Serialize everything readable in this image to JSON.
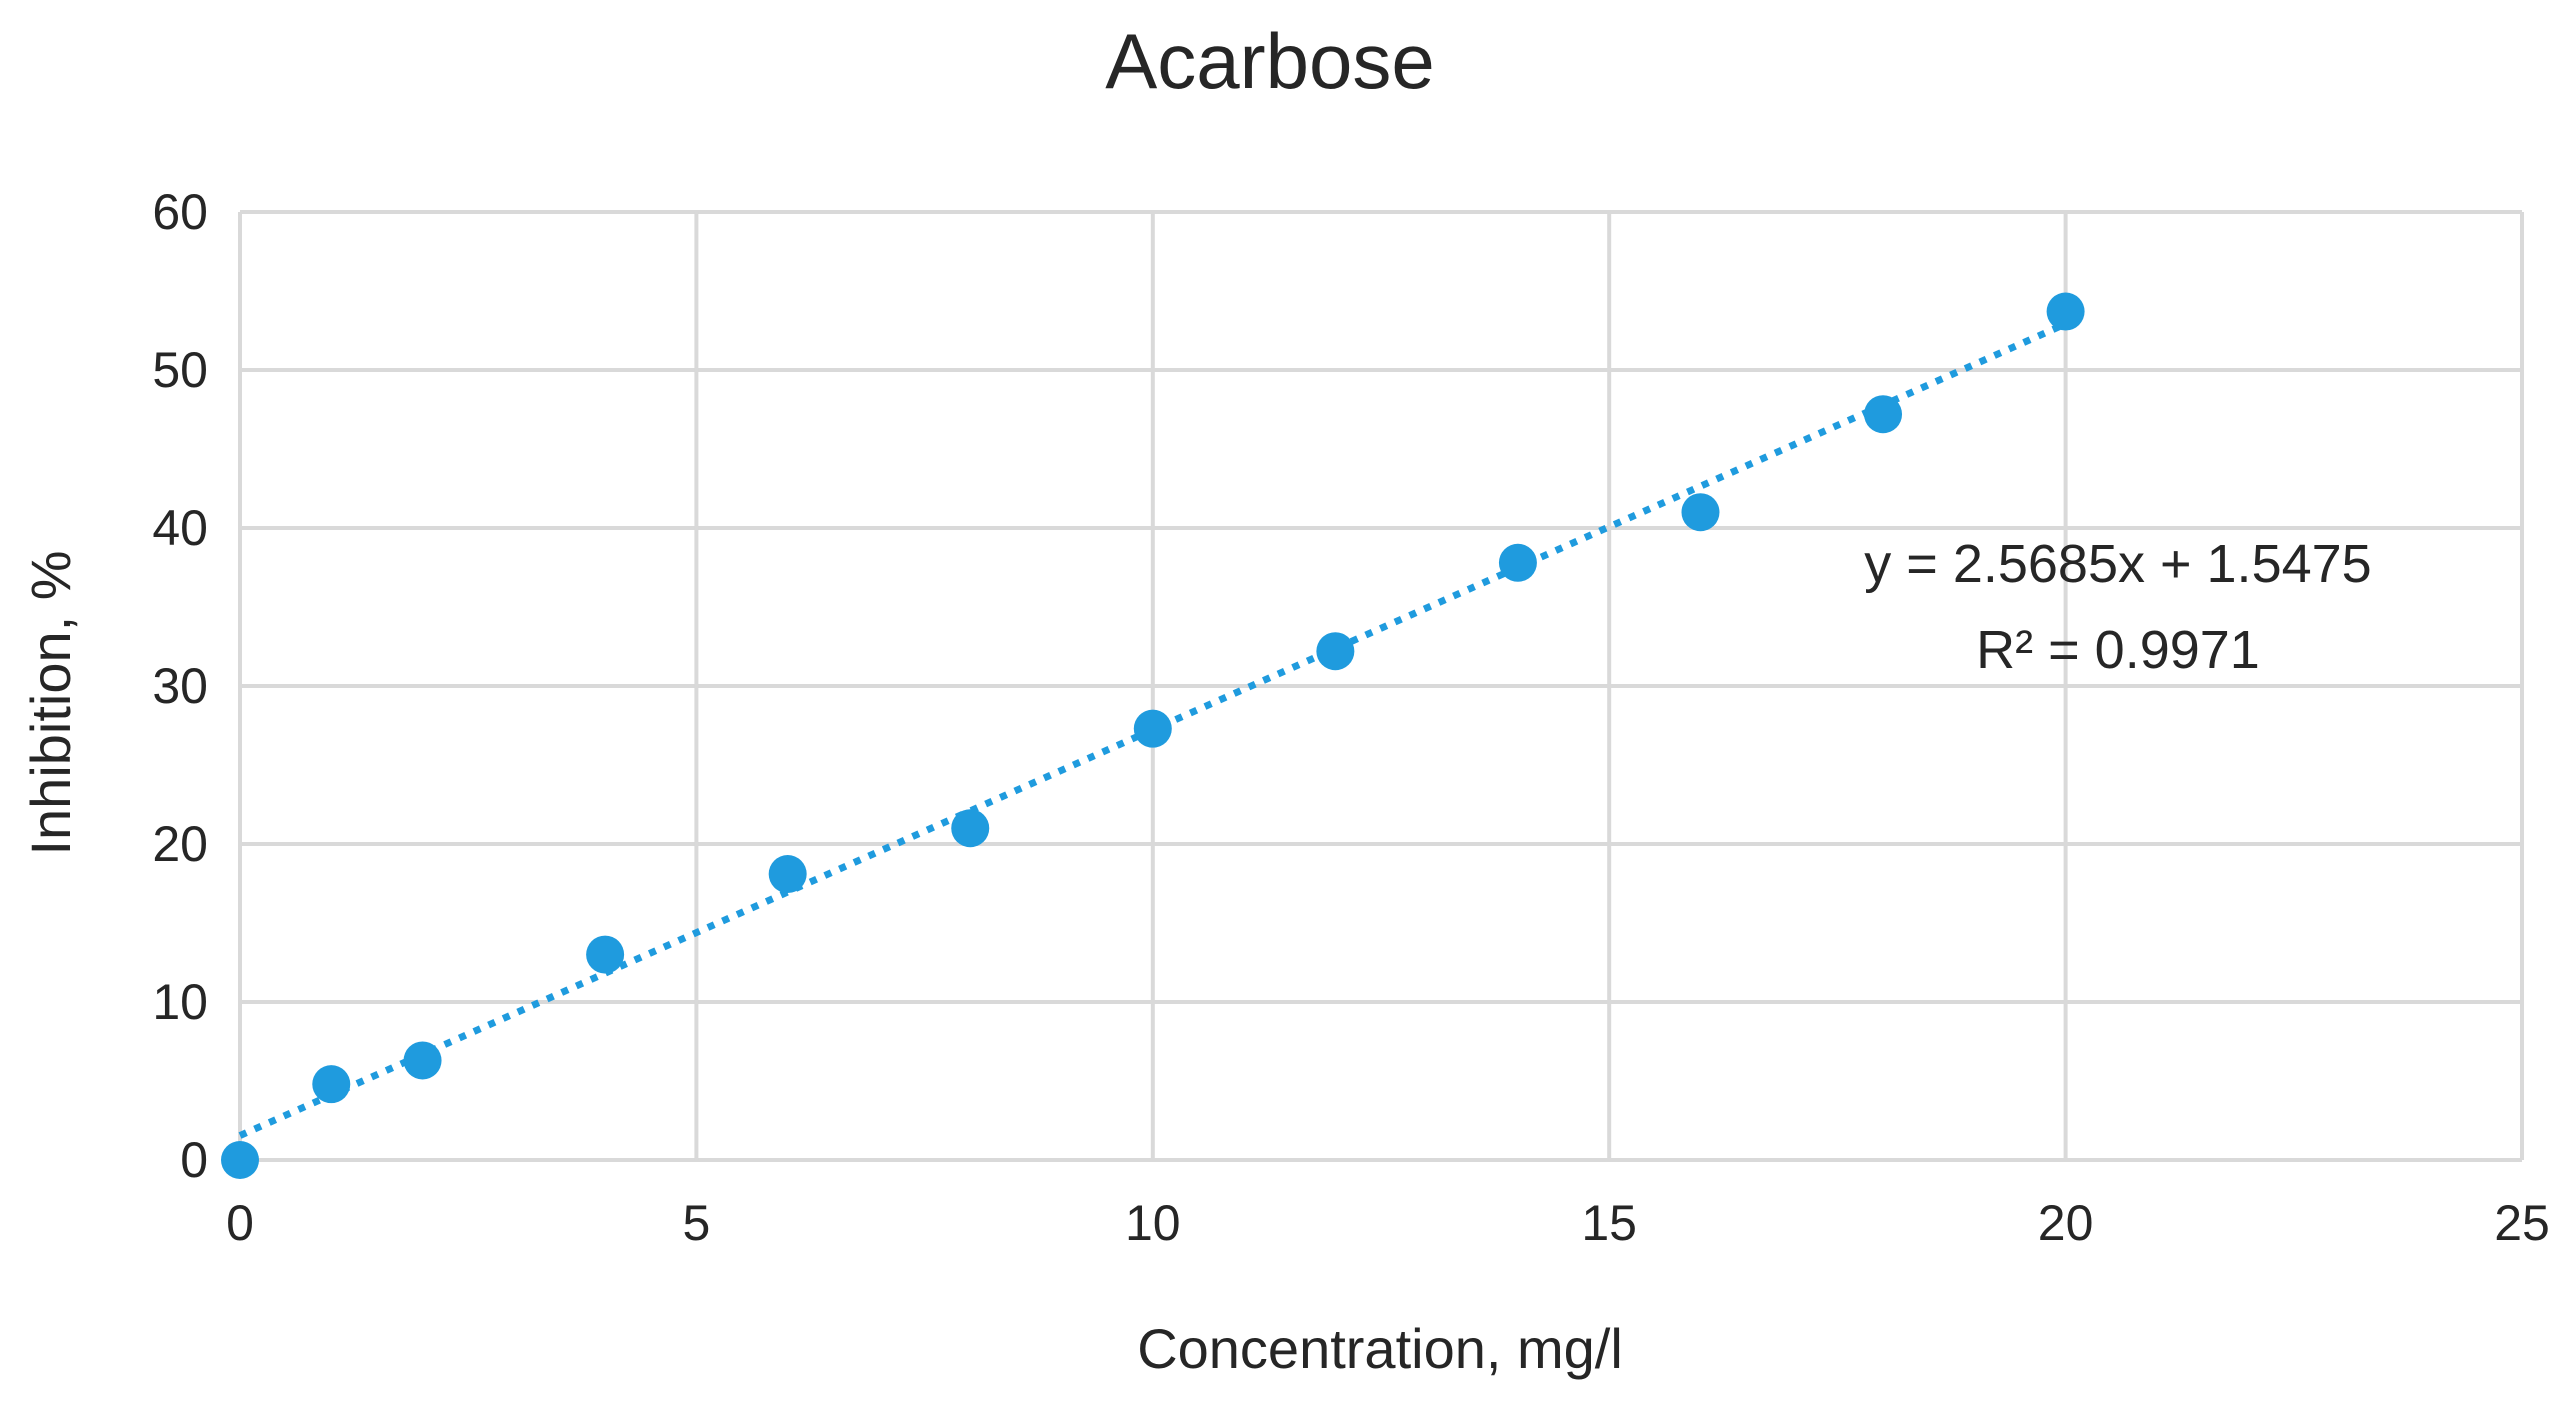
{
  "chart_data": {
    "type": "scatter",
    "title": "Acarbose",
    "xlabel": "Concentration, mg/l",
    "ylabel": "Inhibition, %",
    "xlim": [
      0,
      25
    ],
    "ylim": [
      0,
      60
    ],
    "xticks": [
      0,
      5,
      10,
      15,
      20,
      25
    ],
    "yticks": [
      0,
      10,
      20,
      30,
      40,
      50,
      60
    ],
    "grid": true,
    "legend": "none",
    "series": [
      {
        "color": "#1F9BDE",
        "points": [
          {
            "x": 0,
            "y": 0
          },
          {
            "x": 1,
            "y": 4.8
          },
          {
            "x": 2,
            "y": 6.3
          },
          {
            "x": 4,
            "y": 13.0
          },
          {
            "x": 6,
            "y": 18.1
          },
          {
            "x": 8,
            "y": 21.0
          },
          {
            "x": 10,
            "y": 27.3
          },
          {
            "x": 12,
            "y": 32.2
          },
          {
            "x": 14,
            "y": 37.8
          },
          {
            "x": 16,
            "y": 41.0
          },
          {
            "x": 18,
            "y": 47.2
          },
          {
            "x": 20,
            "y": 53.7
          }
        ]
      }
    ],
    "trendline": {
      "type": "linear",
      "style": "dotted",
      "color": "#1F9BDE",
      "slope": 2.5685,
      "intercept": 1.5475,
      "x_range": [
        0,
        20
      ],
      "equation_label": "y = 2.5685x + 1.5475",
      "r2_label": "R² = 0.9971"
    },
    "colors": {
      "grid": "#D9D9D9",
      "text": "#262626"
    }
  }
}
